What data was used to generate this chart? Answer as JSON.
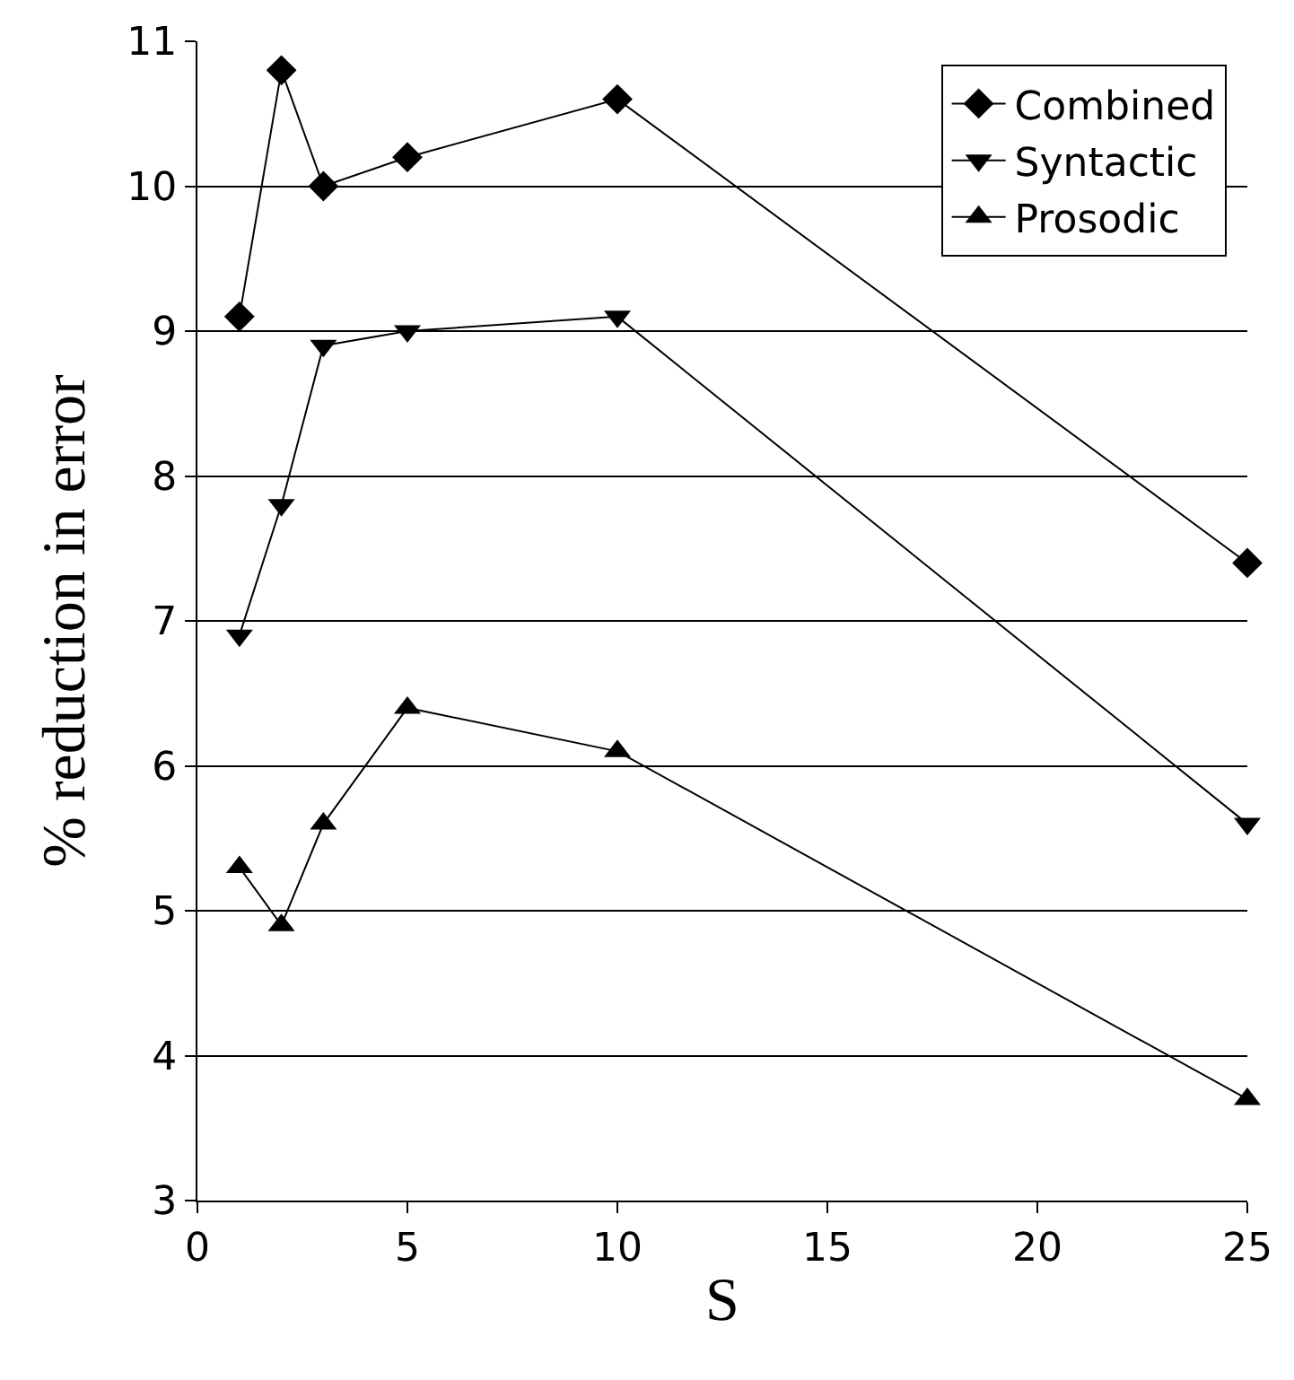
{
  "chart_data": {
    "type": "line",
    "xlabel": "S",
    "ylabel": "% reduction in error",
    "xlim": [
      0,
      25
    ],
    "xticks": [
      0,
      5,
      10,
      15,
      20,
      25
    ],
    "ylim": [
      3,
      11
    ],
    "yticks": [
      3,
      4,
      5,
      6,
      7,
      8,
      9,
      10,
      11
    ],
    "grid": "y",
    "legend": "top right",
    "line_style": "solid",
    "x": [
      1,
      2,
      3,
      5,
      10,
      25
    ],
    "series": [
      {
        "name": "Combined",
        "color": "#000000",
        "marker": "diamond",
        "values": [
          9.1,
          10.8,
          10.0,
          10.2,
          10.6,
          7.4
        ]
      },
      {
        "name": "Syntactic",
        "color": "#000000",
        "marker": "triangle-down",
        "values": [
          6.9,
          7.8,
          8.9,
          9.0,
          9.1,
          5.6
        ]
      },
      {
        "name": "Prosodic",
        "color": "#000000",
        "marker": "triangle",
        "values": [
          5.3,
          4.9,
          5.6,
          6.4,
          6.1,
          3.7
        ]
      }
    ]
  }
}
